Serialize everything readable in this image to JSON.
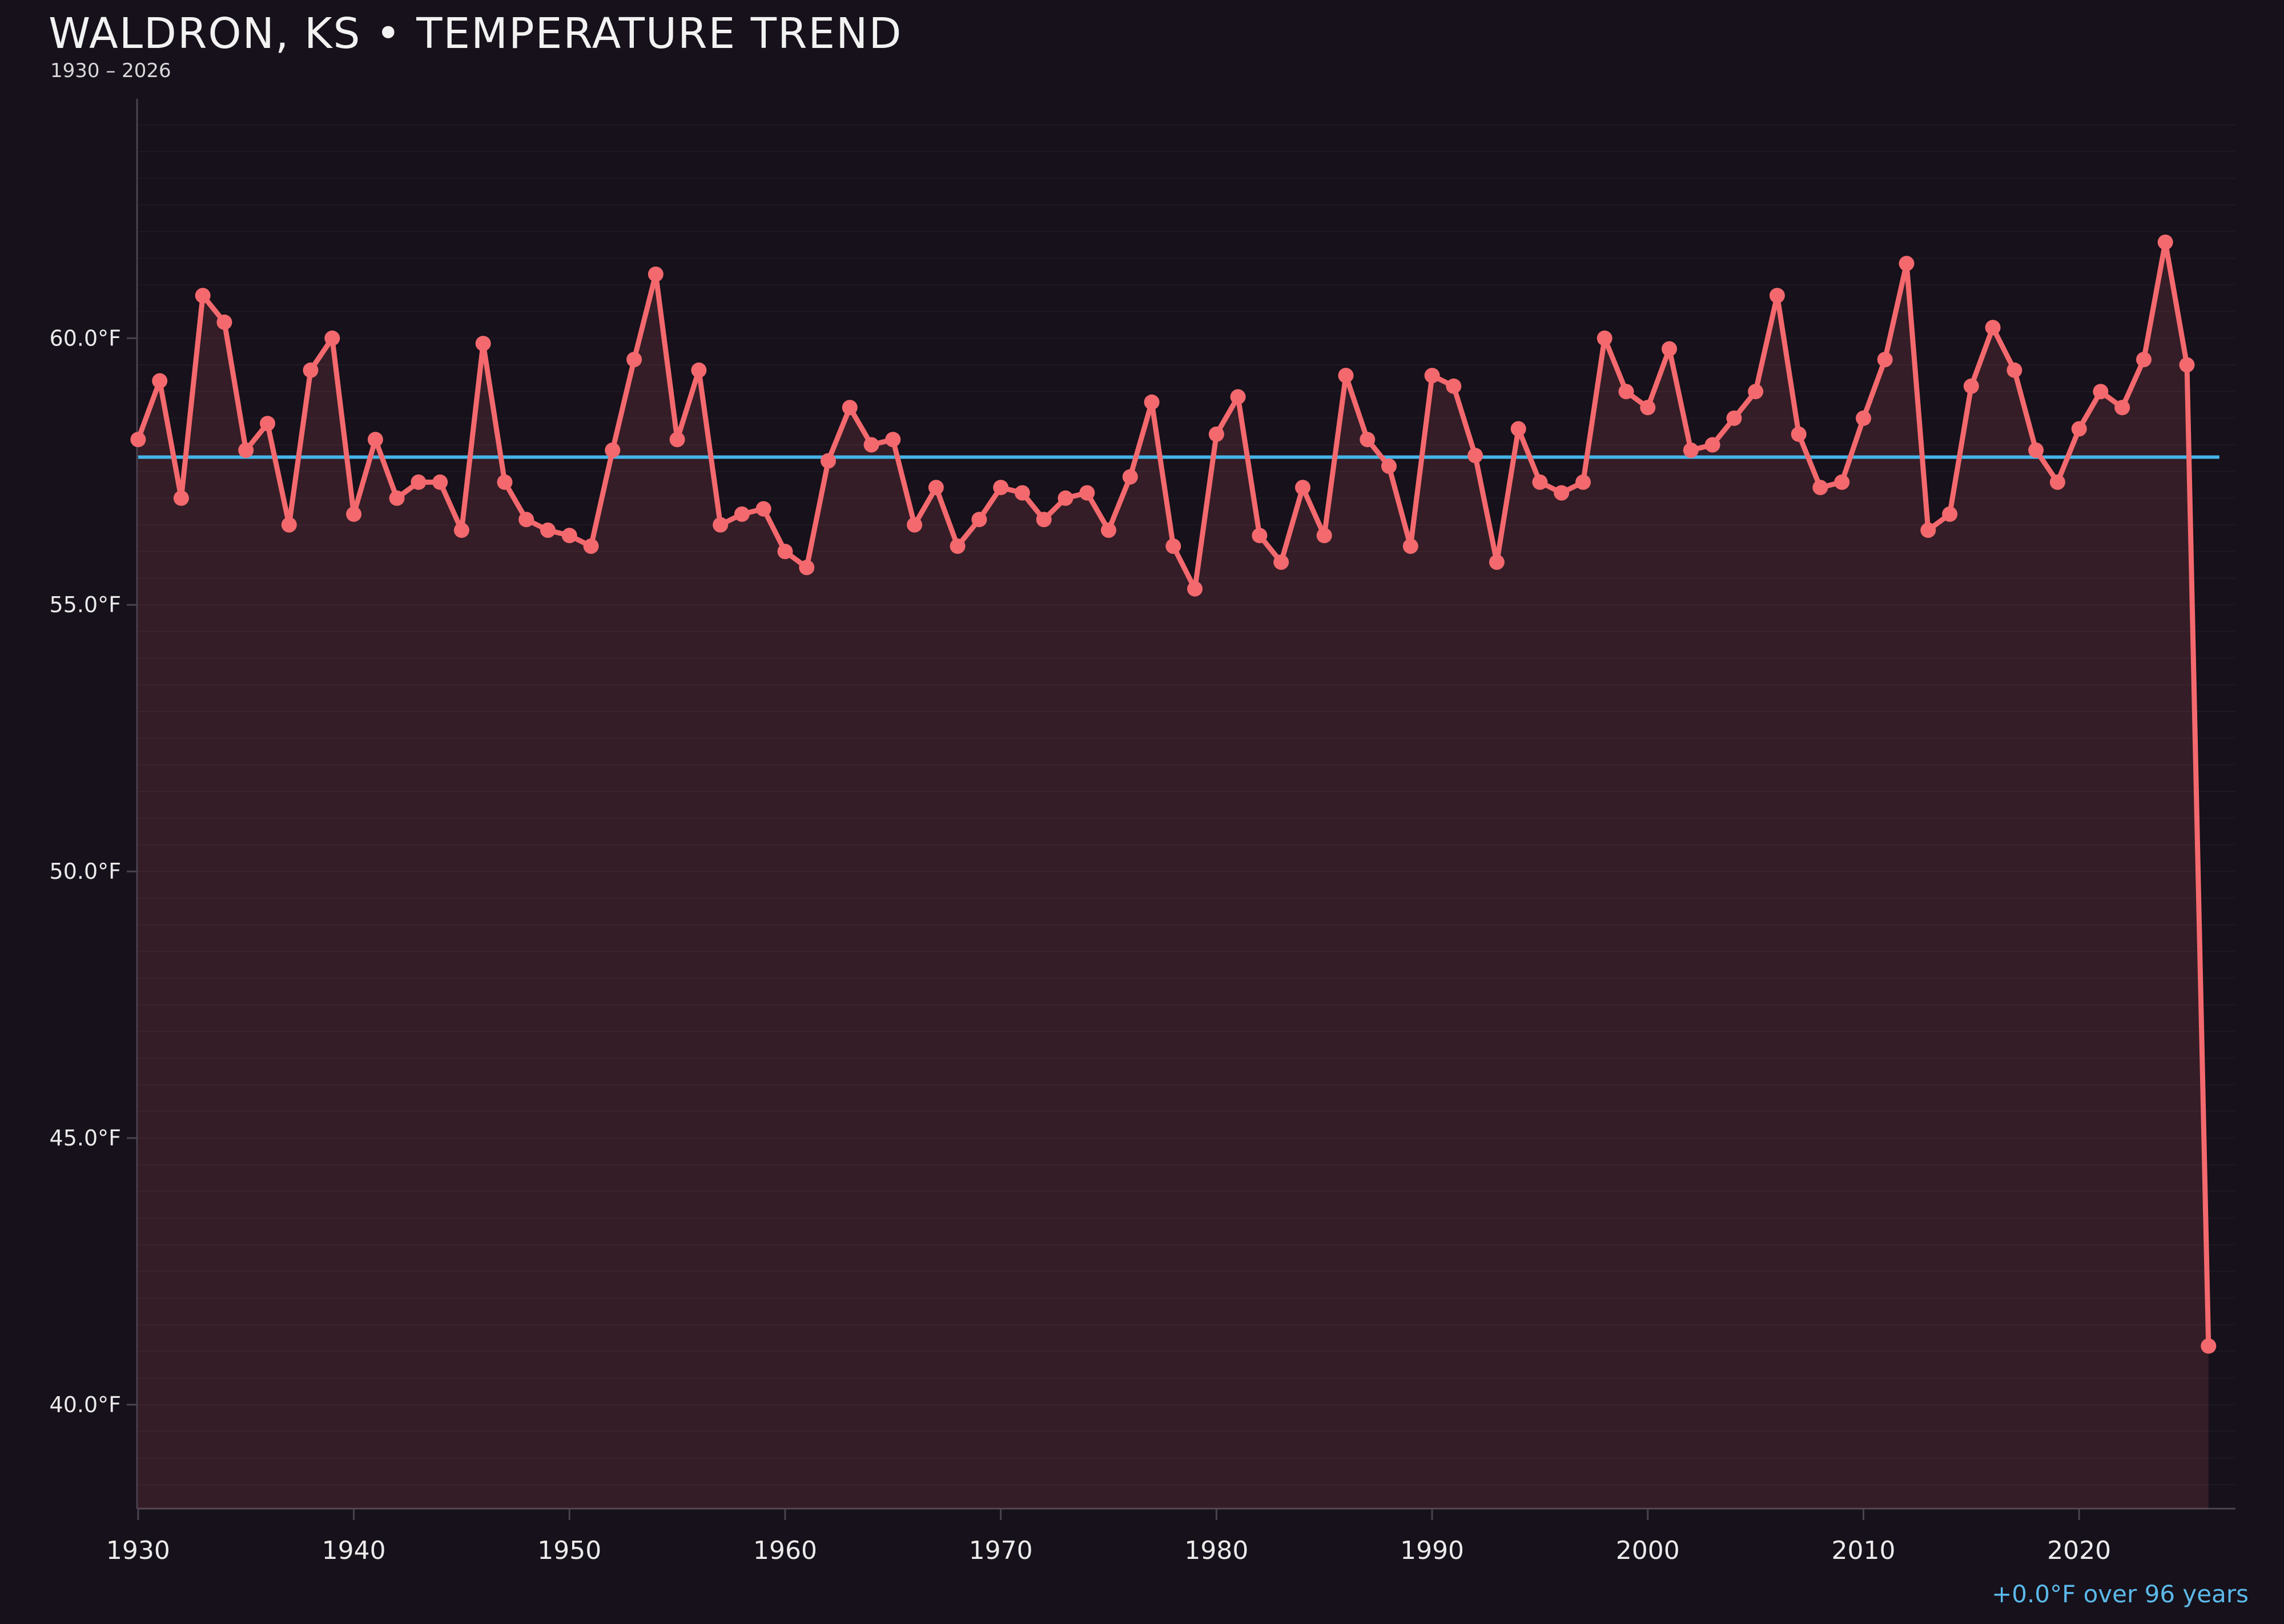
{
  "header": {
    "title": "WALDRON, KS • TEMPERATURE TREND",
    "subtitle": "1930 – 2026"
  },
  "footer": {
    "trend_note": "+0.0°F over 96 years"
  },
  "colors": {
    "background": "#16111a",
    "line": "#f4696e",
    "area_fill": "rgba(244,105,110,0.14)",
    "trend_line": "#45b4e8",
    "trend_text": "#5cb9ea",
    "grid": "rgba(255,255,255,0.035)",
    "spine": "#4a4350",
    "tick_text": "#ebebeb",
    "title_text": "#f2f2f2"
  },
  "chart_data": {
    "type": "line",
    "title": "WALDRON, KS • TEMPERATURE TREND",
    "subtitle": "1930 – 2026",
    "xlabel": "",
    "ylabel": "",
    "xlim": [
      1929.95,
      2027.25
    ],
    "ylim": [
      38.05,
      64.49
    ],
    "grid_step_f": 0.5,
    "legend": "none",
    "x_ticks": [
      1930,
      1940,
      1950,
      1960,
      1970,
      1980,
      1990,
      2000,
      2010,
      2020
    ],
    "y_ticks": [
      {
        "value": 60,
        "label": "60.0°F"
      },
      {
        "value": 55,
        "label": "55.0°F"
      },
      {
        "value": 50,
        "label": "50.0°F"
      },
      {
        "value": 45,
        "label": "45.0°F"
      },
      {
        "value": 40,
        "label": "40.0°F"
      }
    ],
    "x": [
      1930,
      1931,
      1932,
      1933,
      1934,
      1935,
      1936,
      1937,
      1938,
      1939,
      1940,
      1941,
      1942,
      1943,
      1944,
      1945,
      1946,
      1947,
      1948,
      1949,
      1950,
      1951,
      1952,
      1953,
      1954,
      1955,
      1956,
      1957,
      1958,
      1959,
      1960,
      1961,
      1962,
      1963,
      1964,
      1965,
      1966,
      1967,
      1968,
      1969,
      1970,
      1971,
      1972,
      1973,
      1974,
      1975,
      1976,
      1977,
      1978,
      1979,
      1980,
      1981,
      1982,
      1983,
      1984,
      1985,
      1986,
      1987,
      1988,
      1989,
      1990,
      1991,
      1992,
      1993,
      1994,
      1995,
      1996,
      1997,
      1998,
      1999,
      2000,
      2001,
      2002,
      2003,
      2004,
      2005,
      2006,
      2007,
      2008,
      2009,
      2010,
      2011,
      2012,
      2013,
      2014,
      2015,
      2016,
      2017,
      2018,
      2019,
      2020,
      2021,
      2022,
      2023,
      2024,
      2025,
      2026
    ],
    "series": [
      {
        "name": "annual-mean-temperature-f",
        "color": "#f4696e",
        "values": [
          58.1,
          59.2,
          57.0,
          60.8,
          60.3,
          57.9,
          58.4,
          56.5,
          59.4,
          60.0,
          56.7,
          58.1,
          57.0,
          57.3,
          57.3,
          56.4,
          59.9,
          57.3,
          56.6,
          56.4,
          56.3,
          56.1,
          57.9,
          59.6,
          61.2,
          58.1,
          59.4,
          56.5,
          56.7,
          56.8,
          56.0,
          55.7,
          57.7,
          58.7,
          58.0,
          58.1,
          56.5,
          57.2,
          56.1,
          56.6,
          57.2,
          57.1,
          56.6,
          57.0,
          57.1,
          56.4,
          57.4,
          58.8,
          56.1,
          55.3,
          58.2,
          58.9,
          56.3,
          55.8,
          57.2,
          56.3,
          59.3,
          58.1,
          57.6,
          56.1,
          59.3,
          59.1,
          57.8,
          55.8,
          58.3,
          57.3,
          57.1,
          57.3,
          60.0,
          59.0,
          58.7,
          59.8,
          57.9,
          58.0,
          58.5,
          59.0,
          60.8,
          58.2,
          57.2,
          57.3,
          58.5,
          59.6,
          61.4,
          56.4,
          56.7,
          59.1,
          60.2,
          59.4,
          57.9,
          57.3,
          58.3,
          59.0,
          58.7,
          59.6,
          61.8,
          59.5,
          41.1
        ]
      }
    ],
    "trend": {
      "type": "flat-trend-line",
      "value": 57.77,
      "color": "#45b4e8",
      "label": "+0.0°F over 96 years",
      "span_years": 96
    }
  }
}
